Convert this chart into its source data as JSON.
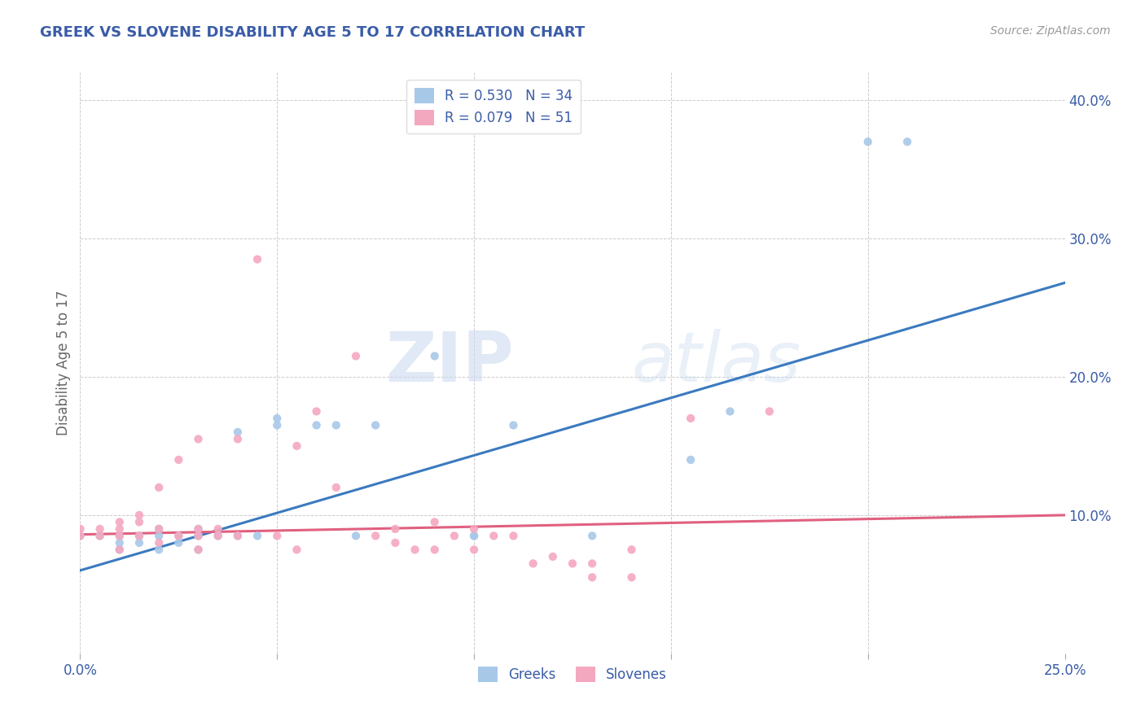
{
  "title": "GREEK VS SLOVENE DISABILITY AGE 5 TO 17 CORRELATION CHART",
  "source": "Source: ZipAtlas.com",
  "ylabel": "Disability Age 5 to 17",
  "xlim": [
    0.0,
    0.25
  ],
  "ylim": [
    0.0,
    0.42
  ],
  "greek_R": 0.53,
  "greek_N": 34,
  "slovene_R": 0.079,
  "slovene_N": 51,
  "greek_color": "#a8c8e8",
  "slovene_color": "#f4a8c0",
  "greek_line_color": "#3a7abf",
  "slovene_line_color": "#e06080",
  "title_color": "#3a5ca8",
  "axis_label_color": "#666666",
  "tick_color": "#3a5ca8",
  "watermark_zip": "ZIP",
  "watermark_atlas": "atlas",
  "background_color": "#ffffff",
  "grid_color": "#cccccc",
  "greek_x": [
    0.0,
    0.005,
    0.01,
    0.01,
    0.01,
    0.015,
    0.015,
    0.02,
    0.02,
    0.02,
    0.025,
    0.025,
    0.03,
    0.03,
    0.03,
    0.035,
    0.04,
    0.04,
    0.045,
    0.05,
    0.05,
    0.06,
    0.065,
    0.07,
    0.075,
    0.09,
    0.1,
    0.1,
    0.11,
    0.13,
    0.155,
    0.165,
    0.2,
    0.21
  ],
  "greek_y": [
    0.085,
    0.085,
    0.085,
    0.08,
    0.075,
    0.085,
    0.08,
    0.09,
    0.085,
    0.075,
    0.085,
    0.08,
    0.09,
    0.085,
    0.075,
    0.085,
    0.16,
    0.085,
    0.085,
    0.165,
    0.17,
    0.165,
    0.165,
    0.085,
    0.165,
    0.215,
    0.085,
    0.085,
    0.165,
    0.085,
    0.14,
    0.175,
    0.37,
    0.37
  ],
  "slovene_x": [
    0.0,
    0.0,
    0.005,
    0.005,
    0.01,
    0.01,
    0.01,
    0.01,
    0.015,
    0.015,
    0.015,
    0.02,
    0.02,
    0.02,
    0.025,
    0.025,
    0.03,
    0.03,
    0.03,
    0.03,
    0.035,
    0.035,
    0.04,
    0.04,
    0.045,
    0.05,
    0.055,
    0.055,
    0.06,
    0.065,
    0.07,
    0.075,
    0.08,
    0.08,
    0.085,
    0.09,
    0.09,
    0.095,
    0.1,
    0.1,
    0.105,
    0.11,
    0.115,
    0.12,
    0.125,
    0.13,
    0.13,
    0.14,
    0.14,
    0.155,
    0.175
  ],
  "slovene_y": [
    0.09,
    0.085,
    0.09,
    0.085,
    0.095,
    0.09,
    0.085,
    0.075,
    0.1,
    0.095,
    0.085,
    0.12,
    0.09,
    0.08,
    0.14,
    0.085,
    0.155,
    0.09,
    0.085,
    0.075,
    0.09,
    0.085,
    0.155,
    0.085,
    0.285,
    0.085,
    0.15,
    0.075,
    0.175,
    0.12,
    0.215,
    0.085,
    0.09,
    0.08,
    0.075,
    0.095,
    0.075,
    0.085,
    0.09,
    0.075,
    0.085,
    0.085,
    0.065,
    0.07,
    0.065,
    0.065,
    0.055,
    0.075,
    0.055,
    0.17,
    0.175
  ],
  "greek_trend_y0": 0.06,
  "greek_trend_y1": 0.268,
  "slovene_trend_y0": 0.086,
  "slovene_trend_y1": 0.1
}
